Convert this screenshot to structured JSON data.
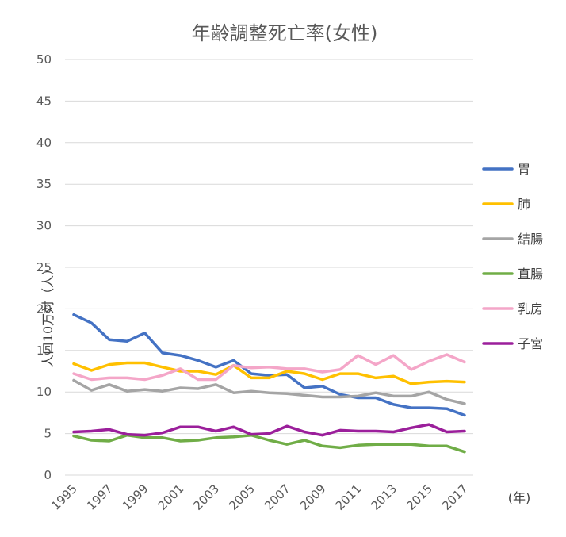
{
  "chart_data": {
    "type": "line",
    "title": "年齢調整死亡率(女性)",
    "ylabel": "人口10万対（人）",
    "xlabel": "(年)",
    "ylim": [
      0,
      50
    ],
    "ytick_step": 5,
    "grid": true,
    "legend_position": "right",
    "x": [
      1995,
      1996,
      1997,
      1998,
      1999,
      2000,
      2001,
      2002,
      2003,
      2004,
      2005,
      2006,
      2007,
      2008,
      2009,
      2010,
      2011,
      2012,
      2013,
      2014,
      2015,
      2016,
      2017
    ],
    "x_tick_labels": [
      "1995",
      "1997",
      "1999",
      "2001",
      "2003",
      "2005",
      "2007",
      "2009",
      "2011",
      "2013",
      "2015",
      "2017"
    ],
    "series": [
      {
        "name": "胃",
        "color": "#4472C4",
        "values": [
          19.3,
          18.3,
          16.3,
          16.1,
          17.1,
          14.7,
          14.4,
          13.8,
          13.0,
          13.8,
          12.2,
          12.0,
          12.1,
          10.5,
          10.7,
          9.7,
          9.3,
          9.3,
          8.5,
          8.1,
          8.1,
          8.0,
          7.2
        ]
      },
      {
        "name": "肺",
        "color": "#FFC000",
        "values": [
          13.4,
          12.6,
          13.3,
          13.5,
          13.5,
          13.0,
          12.5,
          12.5,
          12.1,
          13.2,
          11.7,
          11.7,
          12.5,
          12.2,
          11.5,
          12.2,
          12.2,
          11.7,
          11.9,
          11.0,
          11.2,
          11.3,
          11.2
        ]
      },
      {
        "name": "結腸",
        "color": "#A5A5A5",
        "values": [
          11.4,
          10.2,
          10.9,
          10.1,
          10.3,
          10.1,
          10.5,
          10.4,
          10.9,
          9.9,
          10.1,
          9.9,
          9.8,
          9.6,
          9.4,
          9.4,
          9.5,
          9.9,
          9.5,
          9.5,
          10.0,
          9.1,
          8.6
        ]
      },
      {
        "name": "直腸",
        "color": "#70AD47",
        "values": [
          4.7,
          4.2,
          4.1,
          4.8,
          4.5,
          4.5,
          4.1,
          4.2,
          4.5,
          4.6,
          4.8,
          4.2,
          3.7,
          4.2,
          3.5,
          3.3,
          3.6,
          3.7,
          3.7,
          3.7,
          3.5,
          3.5,
          2.8
        ]
      },
      {
        "name": "乳房",
        "color": "#F4A6C8",
        "values": [
          12.2,
          11.5,
          11.7,
          11.7,
          11.5,
          12.0,
          12.8,
          11.5,
          11.5,
          13.2,
          12.9,
          13.0,
          12.8,
          12.8,
          12.4,
          12.7,
          14.4,
          13.3,
          14.4,
          12.7,
          13.7,
          14.5,
          13.6
        ]
      },
      {
        "name": "子宮",
        "color": "#9B1F9B",
        "values": [
          5.2,
          5.3,
          5.5,
          4.9,
          4.8,
          5.1,
          5.8,
          5.8,
          5.3,
          5.8,
          4.9,
          5.0,
          5.9,
          5.2,
          4.8,
          5.4,
          5.3,
          5.3,
          5.2,
          5.7,
          6.1,
          5.2,
          5.3
        ]
      }
    ]
  }
}
